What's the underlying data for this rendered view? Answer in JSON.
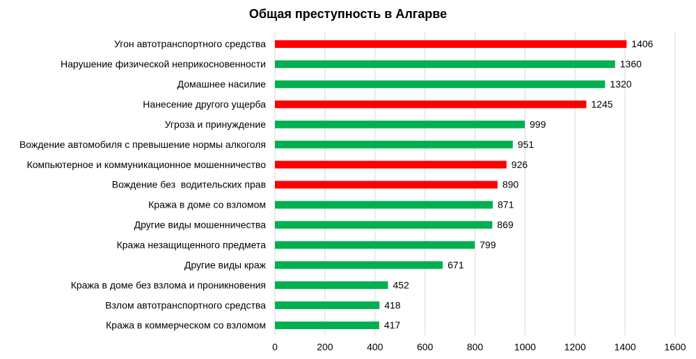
{
  "chart_data": {
    "type": "barh",
    "title": "Общая преступность в Алгарве",
    "categories": [
      "Угон автотранспортного средства",
      "Нарушение физической неприкосновенности",
      "Домашнее насилие",
      "Нанесение другого ущерба",
      "Угроза и принуждение",
      "Вождение автомобиля с превышение нормы алкоголя",
      "Компьютерное и коммуникационное мошенничество",
      "Вождение без  водительских прав",
      "Кража в доме со взломом",
      "Другие виды мошенничества",
      "Кража незащищенного предмета",
      "Другие виды краж",
      "Кража в доме без взлома и проникновения",
      "Взлом автотранспортного средства",
      "Кража в коммерческом со взломом"
    ],
    "values": [
      1406,
      1360,
      1320,
      1245,
      999,
      951,
      926,
      890,
      871,
      869,
      799,
      671,
      452,
      418,
      417
    ],
    "colors": [
      "#ff0000",
      "#00b050",
      "#00b050",
      "#ff0000",
      "#00b050",
      "#00b050",
      "#ff0000",
      "#ff0000",
      "#00b050",
      "#00b050",
      "#00b050",
      "#00b050",
      "#00b050",
      "#00b050",
      "#00b050"
    ],
    "xlim": [
      0,
      1600
    ],
    "xticks": [
      0,
      200,
      400,
      600,
      800,
      1000,
      1200,
      1400,
      1600
    ],
    "grid": true
  }
}
